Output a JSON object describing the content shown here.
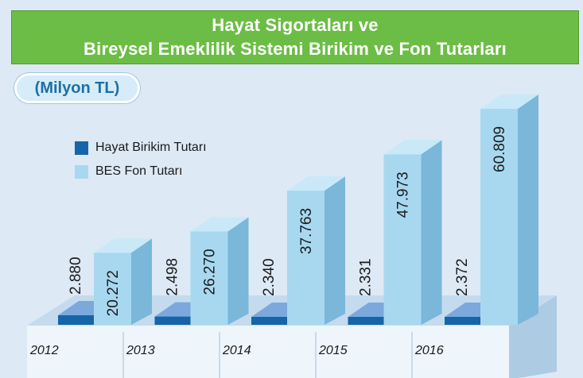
{
  "title": {
    "line1": "Hayat Sigortaları ve",
    "line2": "Bireysel Emeklilik Sistemi Birikim ve Fon Tutarları"
  },
  "unit": "(Milyon TL)",
  "legend": {
    "hayat": "Hayat Birikim Tutarı",
    "bes": "BES Fon Tutarı"
  },
  "colors": {
    "background": "#dde9f5",
    "title_bg": "#6cbd45",
    "hayat_front": "#1565a8",
    "hayat_top": "#7ba9dc",
    "bes_front": "#a8d8f0",
    "bes_side": "#7ab7d9",
    "bes_top": "#c9e9f8",
    "unit_text": "#1d6fa5"
  },
  "chart_data": {
    "type": "bar",
    "categories": [
      "2012",
      "2013",
      "2014",
      "2015",
      "2016"
    ],
    "series": [
      {
        "name": "Hayat Birikim Tutarı",
        "values": [
          2880,
          2498,
          2340,
          2331,
          2372
        ],
        "labels": [
          "2.880",
          "2.498",
          "2.340",
          "2.331",
          "2.372"
        ]
      },
      {
        "name": "BES Fon Tutarı",
        "values": [
          20272,
          26270,
          37763,
          47973,
          60809
        ],
        "labels": [
          "20.272",
          "26.270",
          "37.763",
          "47.973",
          "60.809"
        ]
      }
    ],
    "title": "Hayat Sigortaları ve Bireysel Emeklilik Sistemi Birikim ve Fon Tutarları",
    "ylabel": "(Milyon TL)",
    "legend_position": "left"
  }
}
